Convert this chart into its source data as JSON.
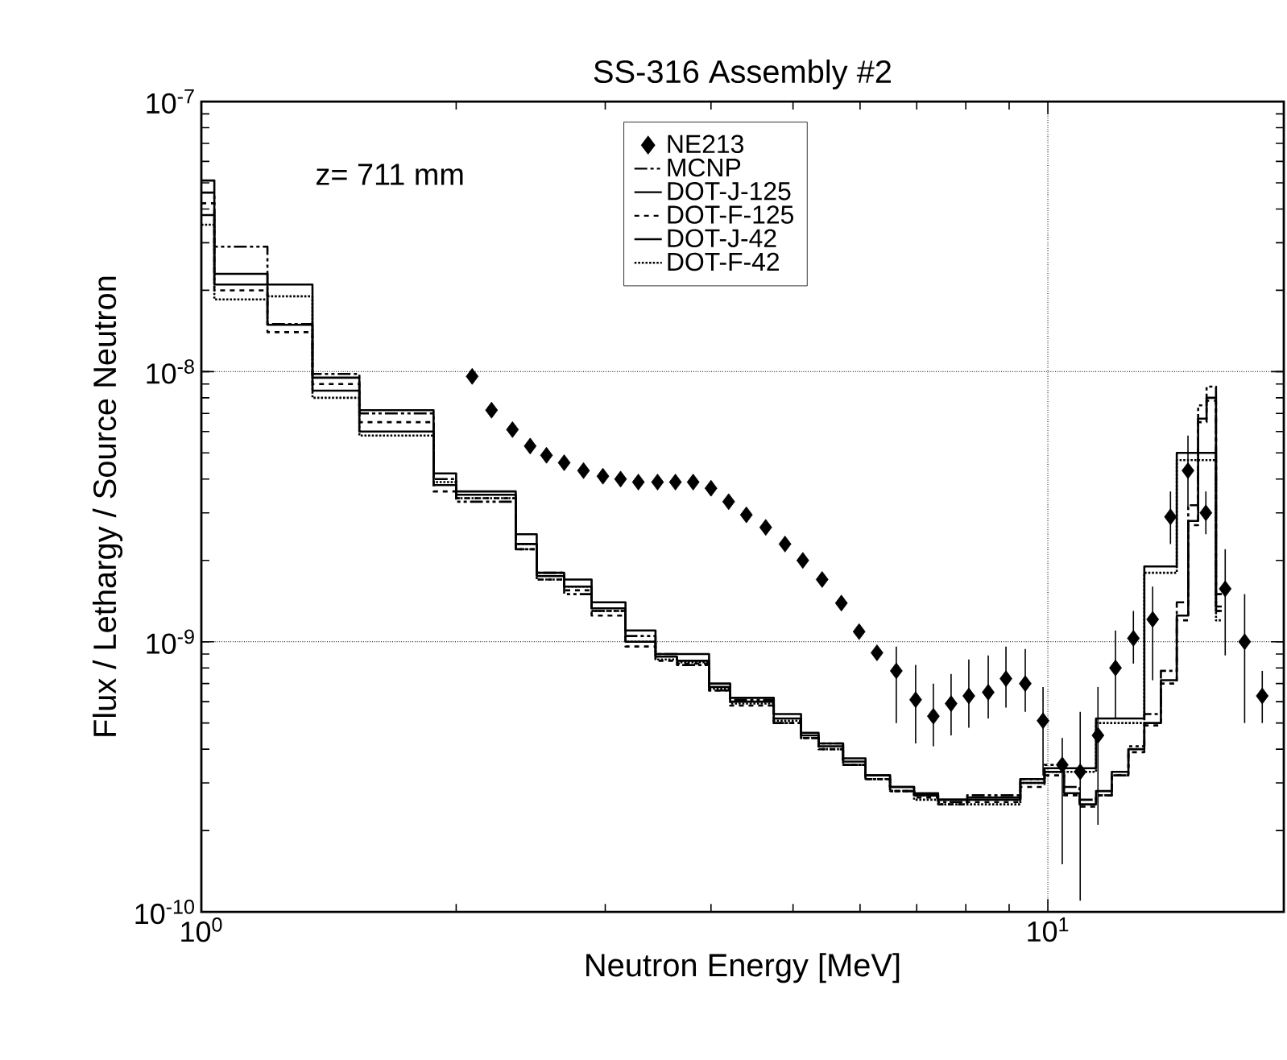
{
  "chart_data": {
    "type": "step",
    "title": "SS-316  Assembly #2",
    "xlabel": "Neutron Energy [MeV]",
    "ylabel": "Flux / Lethargy / Source Neutron",
    "annotations": [
      "z= 711 mm"
    ],
    "log": "xy",
    "grid": true,
    "legend": "top right",
    "xlim": [
      1,
      19
    ],
    "xticks": [
      {
        "value": 1,
        "label": "10$^{0}$"
      },
      {
        "value": 10,
        "label": "10$^{1}$"
      }
    ],
    "ylim": [
      1e-10,
      1e-07
    ],
    "yticks": [
      {
        "value": 1e-10,
        "label": "10$^{-10}$"
      },
      {
        "value": 1e-09,
        "label": "10$^{-9}$"
      },
      {
        "value": 1e-08,
        "label": "10$^{-8}$"
      },
      {
        "value": 1e-07,
        "label": "10$^{-7}$"
      }
    ],
    "series": [
      {
        "name": "NE213",
        "type": "scatter",
        "marker": "diamond",
        "color": "#000000",
        "x": [
          2.089,
          2.202,
          2.331,
          2.446,
          2.557,
          2.683,
          2.828,
          2.981,
          3.128,
          3.283,
          3.459,
          3.631,
          3.811,
          4.0,
          4.197,
          4.404,
          4.642,
          4.892,
          5.135,
          5.412,
          5.703,
          5.985,
          6.283,
          6.622,
          6.98,
          7.325,
          7.687,
          8.066,
          8.503,
          8.923,
          9.404,
          9.87,
          10.4,
          10.92,
          11.46,
          12.02,
          12.62,
          13.3,
          13.96,
          14.64,
          15.37,
          16.2,
          17.08,
          17.92
        ],
        "values": [
          9.6e-09,
          7.2e-09,
          6.1e-09,
          5.3e-09,
          4.9e-09,
          4.6e-09,
          4.3e-09,
          4.1e-09,
          4e-09,
          3.9e-09,
          3.9e-09,
          3.9e-09,
          3.9e-09,
          3.7e-09,
          3.3e-09,
          2.95e-09,
          2.65e-09,
          2.3e-09,
          2e-09,
          1.7e-09,
          1.39e-09,
          1.09e-09,
          9.1e-10,
          7.8e-10,
          6.1e-10,
          5.3e-10,
          5.9e-10,
          6.3e-10,
          6.5e-10,
          7.3e-10,
          7e-10,
          5.1e-10,
          3.5e-10,
          3.3e-10,
          4.5e-10,
          8e-10,
          1.03e-09,
          1.21e-09,
          2.9e-09,
          4.3e-09,
          3e-09,
          1.57e-09,
          1e-09,
          6.3e-10
        ],
        "errors": [
          null,
          null,
          null,
          null,
          null,
          null,
          null,
          null,
          null,
          null,
          null,
          null,
          null,
          null,
          null,
          null,
          null,
          null,
          null,
          null,
          null,
          null,
          null,
          [
            5e-10,
            9.6e-10
          ],
          [
            4.2e-10,
            8.2e-10
          ],
          [
            4.1e-10,
            7e-10
          ],
          [
            4.5e-10,
            7.6e-10
          ],
          [
            4.8e-10,
            8.6e-10
          ],
          [
            5.2e-10,
            8.9e-10
          ],
          [
            5.7e-10,
            9.6e-10
          ],
          [
            5.5e-10,
            9.4e-10
          ],
          [
            3.2e-10,
            6.8e-10
          ],
          [
            1.5e-10,
            4.4e-10
          ],
          [
            1.1e-10,
            5.5e-10
          ],
          [
            2.1e-10,
            6.8e-10
          ],
          [
            5.2e-10,
            1.1e-09
          ],
          [
            8.3e-10,
            1.3e-09
          ],
          [
            7.2e-10,
            1.6e-09
          ],
          [
            2.3e-09,
            3.6e-09
          ],
          [
            3.1e-09,
            5.8e-09
          ],
          [
            2.5e-09,
            3.6e-09
          ],
          [
            8.9e-10,
            2.2e-09
          ],
          [
            5e-10,
            1.5e-09
          ],
          [
            5e-10,
            7.8e-10
          ]
        ]
      },
      {
        "name": "MCNP",
        "line_style": "dashdot",
        "color": "#000000",
        "x": [
          1.0,
          1.036,
          1.197,
          1.353,
          1.537,
          1.881,
          2.0,
          2.352,
          2.49,
          2.683,
          2.891,
          3.17,
          3.44,
          3.647,
          3.98,
          4.215,
          4.745,
          5.11,
          5.36,
          5.73,
          6.09,
          6.51,
          6.95,
          7.42,
          8.03,
          9.28,
          9.91,
          10.45,
          10.9,
          11.4,
          11.9,
          12.45,
          13.0,
          13.6,
          14.2,
          14.65,
          15.05,
          15.4,
          15.8,
          16.05
        ],
        "values": [
          4.6e-08,
          2.9e-08,
          1.5e-08,
          9.8e-09,
          7e-09,
          4e-09,
          3.3e-09,
          2.2e-09,
          1.8e-09,
          1.5e-09,
          1.3e-09,
          1.05e-09,
          9e-10,
          8.2e-10,
          6.6e-10,
          6.1e-10,
          5e-10,
          4.4e-10,
          4.2e-10,
          3.5e-10,
          3.1e-10,
          2.8e-10,
          2.7e-10,
          2.55e-10,
          2.7e-10,
          3.1e-10,
          3.5e-10,
          2.9e-10,
          2.6e-10,
          2.7e-10,
          3.2e-10,
          4.1e-10,
          5.4e-10,
          7.8e-10,
          1.4e-09,
          3.2e-09,
          7.5e-09,
          8.8e-09,
          1.5e-09,
          1.5e-09
        ]
      },
      {
        "name": "DOT-J-125",
        "line_style": "solid",
        "color": "#000000",
        "x": [
          1.0,
          1.036,
          1.197,
          1.353,
          1.537,
          1.881,
          2.0,
          2.352,
          2.49,
          2.683,
          2.891,
          3.17,
          3.44,
          3.647,
          3.98,
          4.215,
          4.745,
          5.11,
          5.36,
          5.73,
          6.09,
          6.51,
          6.95,
          7.42,
          8.03,
          9.28,
          9.91,
          10.45,
          10.9,
          11.4,
          11.9,
          12.45,
          13.0,
          13.6,
          14.2,
          14.65,
          15.05,
          15.4,
          15.8,
          16.05
        ],
        "values": [
          5.1e-08,
          2.3e-08,
          1.49e-08,
          9.5e-09,
          7.2e-09,
          3.8e-09,
          3.5e-09,
          2.3e-09,
          1.75e-09,
          1.6e-09,
          1.33e-09,
          1e-09,
          8.8e-10,
          8.5e-10,
          6.8e-10,
          6e-10,
          5.2e-10,
          4.5e-10,
          4.1e-10,
          3.6e-10,
          3.2e-10,
          2.9e-10,
          2.75e-10,
          2.6e-10,
          2.65e-10,
          3e-10,
          3.3e-10,
          2.75e-10,
          2.5e-10,
          2.8e-10,
          3.3e-10,
          4e-10,
          5e-10,
          7.2e-10,
          1.25e-09,
          2.8e-09,
          6.7e-09,
          8e-09,
          1.35e-09,
          1.35e-09
        ]
      },
      {
        "name": "DOT-F-125",
        "line_style": "dashed",
        "color": "#000000",
        "x": [
          1.0,
          1.036,
          1.197,
          1.353,
          1.537,
          1.881,
          2.0,
          2.352,
          2.49,
          2.683,
          2.891,
          3.17,
          3.44,
          3.647,
          3.98,
          4.215,
          4.745,
          5.11,
          5.36,
          5.73,
          6.09,
          6.51,
          6.95,
          7.42,
          8.03,
          9.28,
          9.91,
          10.45,
          10.9,
          11.4,
          11.9,
          12.45,
          13.0,
          13.6,
          14.2,
          14.65,
          15.05,
          15.4,
          15.8,
          16.05
        ],
        "values": [
          4.2e-08,
          2e-08,
          1.4e-08,
          9e-09,
          6.5e-09,
          3.6e-09,
          3.4e-09,
          2.2e-09,
          1.7e-09,
          1.55e-09,
          1.25e-09,
          9.6e-10,
          8.5e-10,
          8.3e-10,
          6.6e-10,
          5.8e-10,
          5e-10,
          4.4e-10,
          4e-10,
          3.5e-10,
          3.1e-10,
          2.8e-10,
          2.65e-10,
          2.5e-10,
          2.55e-10,
          2.9e-10,
          3.2e-10,
          2.7e-10,
          2.45e-10,
          2.7e-10,
          3.2e-10,
          3.9e-10,
          4.9e-10,
          7e-10,
          1.2e-09,
          2.7e-09,
          6.5e-09,
          7.8e-09,
          1.3e-09,
          1.3e-09
        ]
      },
      {
        "name": "DOT-J-42",
        "line_style": "solid",
        "color": "#000000",
        "x": [
          1.0,
          1.036,
          1.197,
          1.353,
          1.537,
          1.881,
          2.0,
          2.352,
          2.49,
          2.683,
          2.891,
          3.17,
          3.44,
          3.647,
          3.98,
          4.215,
          4.745,
          5.11,
          5.36,
          5.73,
          6.09,
          6.51,
          6.95,
          7.42,
          8.03,
          9.28,
          9.91,
          10.45,
          10.9,
          11.4,
          11.9,
          12.45,
          13.0,
          13.6,
          14.2,
          14.65,
          15.05,
          15.4,
          15.8,
          16.05
        ],
        "values": [
          3.8e-08,
          2.1e-08,
          2.1e-08,
          8.5e-09,
          6e-09,
          4.2e-09,
          3.6e-09,
          2.5e-09,
          1.8e-09,
          1.7e-09,
          1.4e-09,
          1.1e-09,
          9e-10,
          9e-10,
          7e-10,
          6.2e-10,
          5.4e-10,
          4.6e-10,
          4.2e-10,
          3.7e-10,
          3.2e-10,
          2.9e-10,
          2.7e-10,
          2.6e-10,
          2.6e-10,
          3.1e-10,
          3.4e-10,
          3.4e-10,
          3.4e-10,
          5.2e-10,
          5.2e-10,
          5.2e-10,
          1.9e-09,
          1.9e-09,
          5e-09,
          5e-09,
          5e-09,
          5e-09,
          1.3e-09,
          1.3e-09
        ]
      },
      {
        "name": "DOT-F-42",
        "line_style": "dotted",
        "color": "#000000",
        "x": [
          1.0,
          1.036,
          1.197,
          1.353,
          1.537,
          1.881,
          2.0,
          2.352,
          2.49,
          2.683,
          2.891,
          3.17,
          3.44,
          3.647,
          3.98,
          4.215,
          4.745,
          5.11,
          5.36,
          5.73,
          6.09,
          6.51,
          6.95,
          7.42,
          8.03,
          9.28,
          9.91,
          10.45,
          10.9,
          11.4,
          11.9,
          12.45,
          13.0,
          13.6,
          14.2,
          14.65,
          15.05,
          15.4,
          15.8,
          16.05
        ],
        "values": [
          3.5e-08,
          1.85e-08,
          1.9e-08,
          8e-09,
          5.8e-09,
          3.9e-09,
          3.4e-09,
          2.3e-09,
          1.7e-09,
          1.6e-09,
          1.3e-09,
          1e-09,
          8.6e-10,
          8.4e-10,
          6.7e-10,
          5.9e-10,
          5.1e-10,
          4.4e-10,
          4e-10,
          3.5e-10,
          3.1e-10,
          2.8e-10,
          2.6e-10,
          2.5e-10,
          2.5e-10,
          3e-10,
          3.3e-10,
          3.3e-10,
          3.3e-10,
          5e-10,
          5e-10,
          5e-10,
          1.8e-09,
          1.8e-09,
          4.7e-09,
          4.7e-09,
          4.7e-09,
          4.7e-09,
          1.2e-09,
          1.2e-09
        ]
      }
    ]
  }
}
